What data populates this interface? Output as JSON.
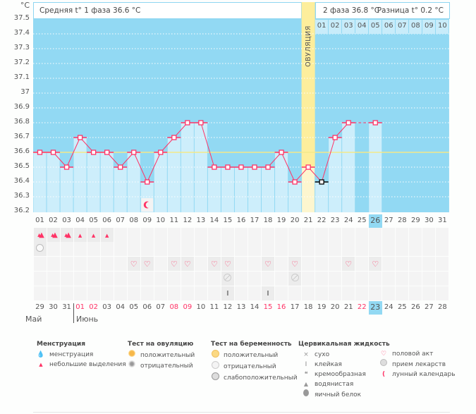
{
  "y_axis": {
    "unit": "°C",
    "ticks": [
      "37.5",
      "37.4",
      "37.3",
      "37.2",
      "37.1",
      "37",
      "36.9",
      "36.8",
      "36.7",
      "36.6",
      "36.5",
      "36.4",
      "36.3",
      "36.2"
    ]
  },
  "header": {
    "phase1": "Средняя t° 1 фаза 36.6 °C",
    "phase2": "2 фаза 36.8 °C",
    "difference": "Разница t° 0.2 °C",
    "ovulation_label": "ОВУЛЯЦИЯ"
  },
  "phase2_days": [
    "01",
    "02",
    "03",
    "04",
    "05",
    "06",
    "07",
    "08",
    "09",
    "10"
  ],
  "colors": {
    "sky": "#92d9f3",
    "bar": "#cdeefb",
    "red": "#ff3366",
    "ovulation": "#fdee9c",
    "average": "#f3e88a",
    "today": "#92d9f3"
  },
  "chart_data": {
    "type": "line",
    "ylim": [
      36.2,
      37.5
    ],
    "average_line": 36.6,
    "ovulation_day": 21,
    "cycle_days": [
      "01",
      "02",
      "03",
      "04",
      "05",
      "06",
      "07",
      "08",
      "09",
      "10",
      "11",
      "12",
      "13",
      "14",
      "15",
      "16",
      "17",
      "18",
      "19",
      "20",
      "21",
      "22",
      "23",
      "24",
      "25",
      "26",
      "27",
      "28",
      "29",
      "30",
      "31"
    ],
    "temperatures": [
      36.6,
      36.6,
      36.5,
      36.7,
      36.6,
      36.6,
      36.5,
      36.6,
      36.4,
      36.6,
      36.7,
      36.8,
      36.8,
      36.5,
      36.5,
      36.5,
      36.5,
      36.5,
      36.6,
      36.4,
      36.5,
      36.4,
      36.7,
      36.8,
      null,
      36.8,
      null,
      null,
      null,
      null,
      null
    ],
    "excluded_day": 22,
    "today_index": 26
  },
  "rows": {
    "menstruation": {
      "heavy": [
        1,
        2,
        3
      ],
      "light": [
        4,
        5,
        6
      ]
    },
    "pregnancy_test_negative": [
      1
    ],
    "intercourse": [
      8,
      9,
      11,
      12,
      14,
      15,
      18,
      20,
      24,
      26
    ],
    "medication": [
      15,
      20
    ],
    "fluid_sticky": [
      15,
      18
    ],
    "moon_day": 9
  },
  "dates": [
    "29",
    "30",
    "31",
    "01",
    "02",
    "03",
    "04",
    "05",
    "06",
    "07",
    "08",
    "09",
    "10",
    "11",
    "12",
    "13",
    "14",
    "15",
    "16",
    "17",
    "18",
    "19",
    "20",
    "21",
    "22",
    "23",
    "24",
    "25",
    "26",
    "27",
    "28"
  ],
  "red_dates": [
    4,
    5,
    11,
    12,
    18,
    19,
    25
  ],
  "months": {
    "may": "Май",
    "june": "Июнь"
  },
  "legend": {
    "menstruation": {
      "title": "Менструация",
      "items": [
        "менструация",
        "небольшие выделения"
      ]
    },
    "ovulation_test": {
      "title": "Тест на овуляцию",
      "items": [
        "положительный",
        "отрицательный"
      ]
    },
    "pregnancy_test": {
      "title": "Тест на беременность",
      "items": [
        "положительный",
        "отрицательный",
        "слабоположительный"
      ]
    },
    "cervical_fluid": {
      "title": "Цервикальная жидкость",
      "items": [
        "сухо",
        "клейкая",
        "кремообразная",
        "водянистая",
        "яичный белок"
      ]
    },
    "other": {
      "items": [
        "половой акт",
        "прием лекарств",
        "лунный календарь"
      ]
    }
  }
}
